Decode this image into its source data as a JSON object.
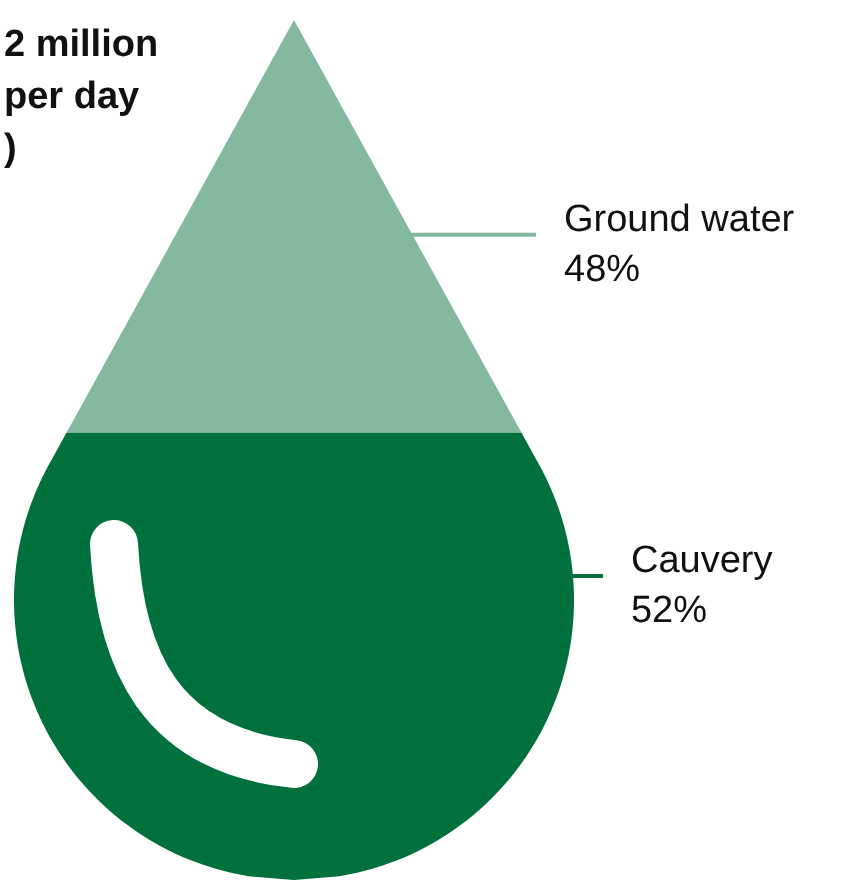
{
  "chart_data": {
    "type": "other",
    "categories": [
      "Ground water",
      "Cauvery"
    ],
    "values": [
      48,
      52
    ],
    "value_labels": [
      "48%",
      "52%"
    ],
    "colors": [
      "#84b9a0",
      "#00703c"
    ],
    "annotations": [
      "2 million",
      "per day",
      ")"
    ]
  }
}
